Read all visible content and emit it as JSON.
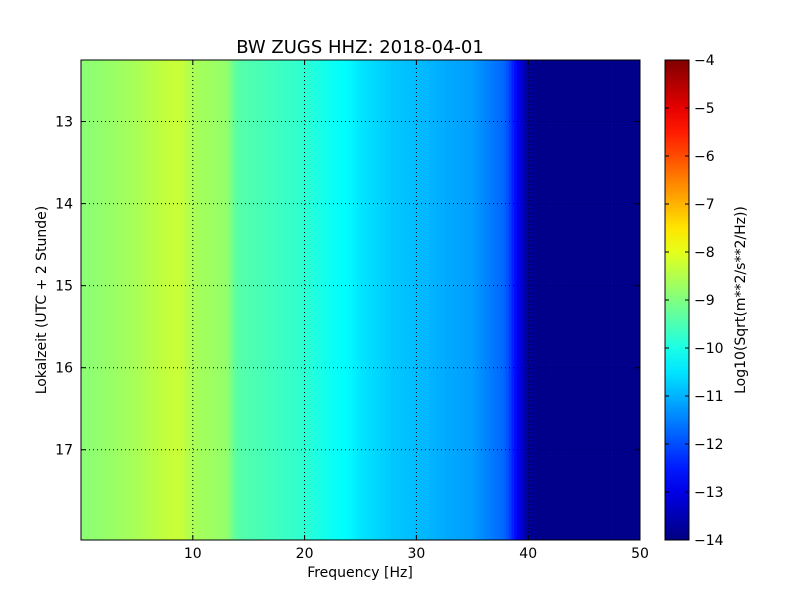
{
  "chart_data": {
    "type": "heatmap",
    "title": "BW ZUGS HHZ: 2018-04-01",
    "xlabel": "Frequency [Hz]",
    "ylabel": "Lokalzeit (UTC + 2 Stunde)",
    "xlim": [
      0,
      50
    ],
    "ylim": [
      12.25,
      18.1
    ],
    "y_inverted": true,
    "x_ticks": [
      10,
      20,
      30,
      40,
      50
    ],
    "x_tick_labels": [
      "10",
      "20",
      "30",
      "40",
      "50"
    ],
    "y_ticks": [
      13,
      14,
      15,
      16,
      17
    ],
    "y_tick_labels": [
      "13",
      "14",
      "15",
      "16",
      "17"
    ],
    "grid": true,
    "colormap": "jet",
    "colorbar": {
      "label": "Log10(Sqrt(m**2/s**2/Hz))",
      "range": [
        -14,
        -4
      ],
      "ticks": [
        -4,
        -5,
        -6,
        -7,
        -8,
        -9,
        -10,
        -11,
        -12,
        -13,
        -14
      ],
      "tick_labels": [
        "−4",
        "−5",
        "−6",
        "−7",
        "−8",
        "−9",
        "−10",
        "−11",
        "−12",
        "−13",
        "−14"
      ]
    },
    "spectrum_profile": {
      "frequency_hz": [
        0,
        2,
        5,
        8,
        9,
        10,
        13,
        14,
        17,
        20,
        22,
        24,
        25,
        28,
        30,
        33,
        35,
        37,
        38,
        39,
        40,
        41,
        50
      ],
      "log10_amplitude": [
        -8.9,
        -8.8,
        -8.6,
        -8.3,
        -8.3,
        -8.6,
        -8.8,
        -9.4,
        -9.6,
        -9.8,
        -10.1,
        -10.3,
        -10.5,
        -10.8,
        -10.9,
        -11.1,
        -11.2,
        -11.6,
        -11.8,
        -12.8,
        -13.8,
        -13.9,
        -13.9
      ]
    }
  }
}
